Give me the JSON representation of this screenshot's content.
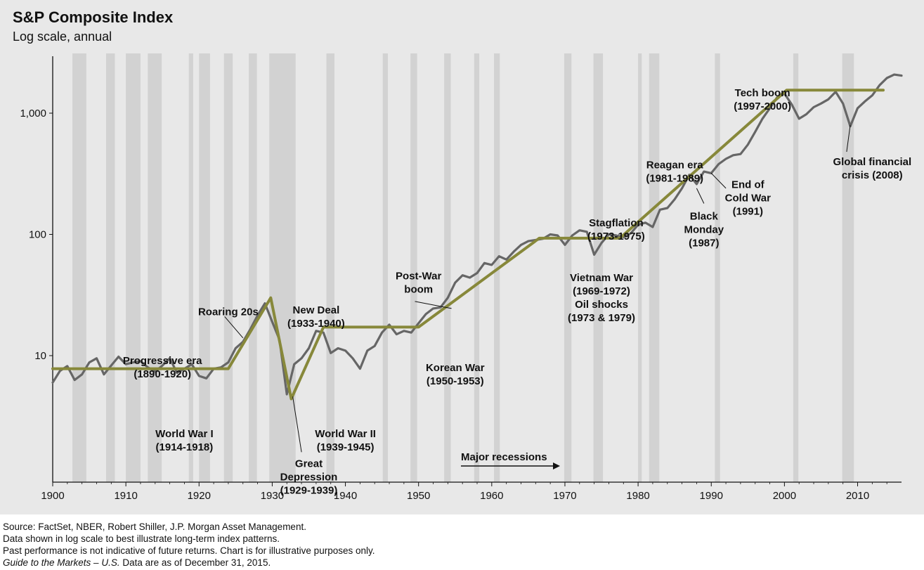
{
  "chart_data": {
    "type": "line",
    "title": "S&P Composite Index",
    "subtitle": "Log scale, annual",
    "x_ticks": [
      "1900",
      "1910",
      "1920",
      "1930",
      "1940",
      "1950",
      "1960",
      "1970",
      "1980",
      "1990",
      "2000",
      "2010"
    ],
    "y_ticks": [
      "10",
      "100",
      "1,000"
    ],
    "y_tick_values": [
      10,
      100,
      1000
    ],
    "xlim": [
      1900,
      2016
    ],
    "ylim": [
      1,
      2000
    ],
    "y_scale": "log",
    "grid": false,
    "series": [
      {
        "name": "",
        "color": "#666666",
        "points": [
          [
            1900,
            6.0
          ],
          [
            1901,
            7.5
          ],
          [
            1902,
            8.2
          ],
          [
            1903,
            6.3
          ],
          [
            1904,
            7.0
          ],
          [
            1905,
            8.8
          ],
          [
            1906,
            9.5
          ],
          [
            1907,
            7.0
          ],
          [
            1908,
            8.3
          ],
          [
            1909,
            9.8
          ],
          [
            1910,
            8.5
          ],
          [
            1911,
            8.8
          ],
          [
            1912,
            9.0
          ],
          [
            1913,
            8.0
          ],
          [
            1914,
            7.4
          ],
          [
            1915,
            8.3
          ],
          [
            1916,
            9.5
          ],
          [
            1917,
            7.2
          ],
          [
            1918,
            7.8
          ],
          [
            1919,
            8.5
          ],
          [
            1920,
            6.8
          ],
          [
            1921,
            6.5
          ],
          [
            1922,
            7.8
          ],
          [
            1923,
            8.0
          ],
          [
            1924,
            8.8
          ],
          [
            1925,
            11.5
          ],
          [
            1926,
            13.0
          ],
          [
            1927,
            16.5
          ],
          [
            1928,
            21.5
          ],
          [
            1929,
            27.0
          ],
          [
            1930,
            19.0
          ],
          [
            1931,
            13.5
          ],
          [
            1932,
            4.8
          ],
          [
            1933,
            8.5
          ],
          [
            1934,
            9.5
          ],
          [
            1935,
            11.5
          ],
          [
            1936,
            16.0
          ],
          [
            1937,
            15.5
          ],
          [
            1938,
            10.5
          ],
          [
            1939,
            11.5
          ],
          [
            1940,
            11.0
          ],
          [
            1941,
            9.5
          ],
          [
            1942,
            7.8
          ],
          [
            1943,
            11.0
          ],
          [
            1944,
            12.0
          ],
          [
            1945,
            15.5
          ],
          [
            1946,
            18.0
          ],
          [
            1947,
            15.0
          ],
          [
            1948,
            16.0
          ],
          [
            1949,
            15.5
          ],
          [
            1950,
            18.5
          ],
          [
            1951,
            22.0
          ],
          [
            1952,
            24.5
          ],
          [
            1953,
            25.0
          ],
          [
            1954,
            30.0
          ],
          [
            1955,
            40.0
          ],
          [
            1956,
            46.0
          ],
          [
            1957,
            44.0
          ],
          [
            1958,
            48.0
          ],
          [
            1959,
            58.0
          ],
          [
            1960,
            56.0
          ],
          [
            1961,
            66.0
          ],
          [
            1962,
            62.0
          ],
          [
            1963,
            72.0
          ],
          [
            1964,
            82.0
          ],
          [
            1965,
            88.0
          ],
          [
            1966,
            90.0
          ],
          [
            1967,
            92.0
          ],
          [
            1968,
            100.0
          ],
          [
            1969,
            98.0
          ],
          [
            1970,
            82.0
          ],
          [
            1971,
            98.0
          ],
          [
            1972,
            108.0
          ],
          [
            1973,
            105.0
          ],
          [
            1974,
            68.0
          ],
          [
            1975,
            85.0
          ],
          [
            1976,
            100.0
          ],
          [
            1977,
            98.0
          ],
          [
            1978,
            95.0
          ],
          [
            1979,
            102.0
          ],
          [
            1980,
            120.0
          ],
          [
            1981,
            125.0
          ],
          [
            1982,
            115.0
          ],
          [
            1983,
            160.0
          ],
          [
            1984,
            165.0
          ],
          [
            1985,
            195.0
          ],
          [
            1986,
            240.0
          ],
          [
            1987,
            310.0
          ],
          [
            1988,
            260.0
          ],
          [
            1989,
            330.0
          ],
          [
            1990,
            320.0
          ],
          [
            1991,
            380.0
          ],
          [
            1992,
            420.0
          ],
          [
            1993,
            450.0
          ],
          [
            1994,
            460.0
          ],
          [
            1995,
            550.0
          ],
          [
            1996,
            700.0
          ],
          [
            1997,
            900.0
          ],
          [
            1998,
            1100.0
          ],
          [
            1999,
            1350.0
          ],
          [
            2000,
            1450.0
          ],
          [
            2001,
            1180.0
          ],
          [
            2002,
            900.0
          ],
          [
            2003,
            980.0
          ],
          [
            2004,
            1120.0
          ],
          [
            2005,
            1200.0
          ],
          [
            2006,
            1300.0
          ],
          [
            2007,
            1500.0
          ],
          [
            2008,
            1200.0
          ],
          [
            2009,
            780.0
          ],
          [
            2010,
            1100.0
          ],
          [
            2011,
            1250.0
          ],
          [
            2012,
            1400.0
          ],
          [
            2013,
            1700.0
          ],
          [
            2014,
            1950.0
          ],
          [
            2015,
            2080.0
          ],
          [
            2016,
            2040.0
          ]
        ]
      },
      {
        "name": "",
        "color": "#87883a",
        "points": [
          [
            1900,
            7.8
          ],
          [
            1924,
            7.8
          ],
          [
            1929.8,
            30.0
          ],
          [
            1932.6,
            4.4
          ],
          [
            1937,
            17.2
          ],
          [
            1950,
            17.2
          ],
          [
            1966.5,
            93.0
          ],
          [
            1977.5,
            93.0
          ],
          [
            2000.3,
            1550.0
          ],
          [
            2013.5,
            1550.0
          ]
        ]
      }
    ],
    "recessions": [
      [
        1902.7,
        1904.6
      ],
      [
        1907.3,
        1908.5
      ],
      [
        1910.0,
        1912.0
      ],
      [
        1913.0,
        1914.9
      ],
      [
        1918.6,
        1919.2
      ],
      [
        1920.0,
        1921.5
      ],
      [
        1923.4,
        1924.6
      ],
      [
        1926.8,
        1927.9
      ],
      [
        1929.6,
        1933.2
      ],
      [
        1937.4,
        1938.5
      ],
      [
        1945.1,
        1945.8
      ],
      [
        1948.9,
        1949.8
      ],
      [
        1953.5,
        1954.4
      ],
      [
        1957.6,
        1958.3
      ],
      [
        1960.3,
        1961.1
      ],
      [
        1969.9,
        1970.9
      ],
      [
        1973.9,
        1975.2
      ],
      [
        1980.0,
        1980.5
      ],
      [
        1981.5,
        1982.9
      ],
      [
        1990.5,
        1991.2
      ],
      [
        2001.2,
        2001.9
      ],
      [
        2007.9,
        2009.5
      ]
    ],
    "annotations": [
      {
        "lines": [
          "Progressive era",
          "(1890-1920)"
        ],
        "x": 1915,
        "y": 8.0
      },
      {
        "lines": [
          "Roaring 20s"
        ],
        "x": 1924,
        "y": 23.0
      },
      {
        "lines": [
          "New Deal",
          "(1933-1940)"
        ],
        "x": 1936,
        "y": 21.0
      },
      {
        "lines": [
          "World War I",
          "(1914-1918)"
        ],
        "x": 1918,
        "y": 2.0
      },
      {
        "lines": [
          "Great",
          "Depression",
          "(1929-1939)"
        ],
        "x": 1935,
        "y": 1.0
      },
      {
        "lines": [
          "World War II",
          "(1939-1945)"
        ],
        "x": 1940,
        "y": 2.0
      },
      {
        "lines": [
          "Post-War",
          "boom"
        ],
        "x": 1950,
        "y": 40.0
      },
      {
        "lines": [
          "Korean War",
          "(1950-1953)"
        ],
        "x": 1955,
        "y": 7.0
      },
      {
        "lines": [
          "Stagflation",
          "(1973-1975)"
        ],
        "x": 1977,
        "y": 110.0
      },
      {
        "lines": [
          "Vietnam War",
          "(1969-1972)",
          "Oil shocks",
          "(1973 & 1979)"
        ],
        "x": 1975,
        "y": 30.0
      },
      {
        "lines": [
          "Reagan era",
          "(1981-1989)"
        ],
        "x": 1985,
        "y": 330.0
      },
      {
        "lines": [
          "Black",
          "Monday",
          "(1987)"
        ],
        "x": 1989,
        "y": 110.0
      },
      {
        "lines": [
          "End of",
          "Cold War",
          "(1991)"
        ],
        "x": 1995,
        "y": 200.0
      },
      {
        "lines": [
          "Tech boom",
          "(1997-2000)"
        ],
        "x": 1997,
        "y": 1300.0
      },
      {
        "lines": [
          "Global financial",
          "crisis (2008)"
        ],
        "x": 2012,
        "y": 350.0
      }
    ],
    "recession_legend": "Major recessions"
  },
  "footnotes": {
    "line1": "Source: FactSet, NBER, Robert Shiller, J.P. Morgan Asset Management.",
    "line2": "Data shown in log scale to best illustrate long-term index patterns.",
    "line3": "Past performance is not indicative of future returns. Chart is for illustrative purposes only.",
    "line4_em": "Guide to the Markets – U.S.",
    "line4_rest": " Data are as of December 31, 2015."
  },
  "colors": {
    "background": "#e8e8e8",
    "index_line": "#666666",
    "trend_line": "#87883a",
    "recession_band": "#d2d2d2"
  }
}
